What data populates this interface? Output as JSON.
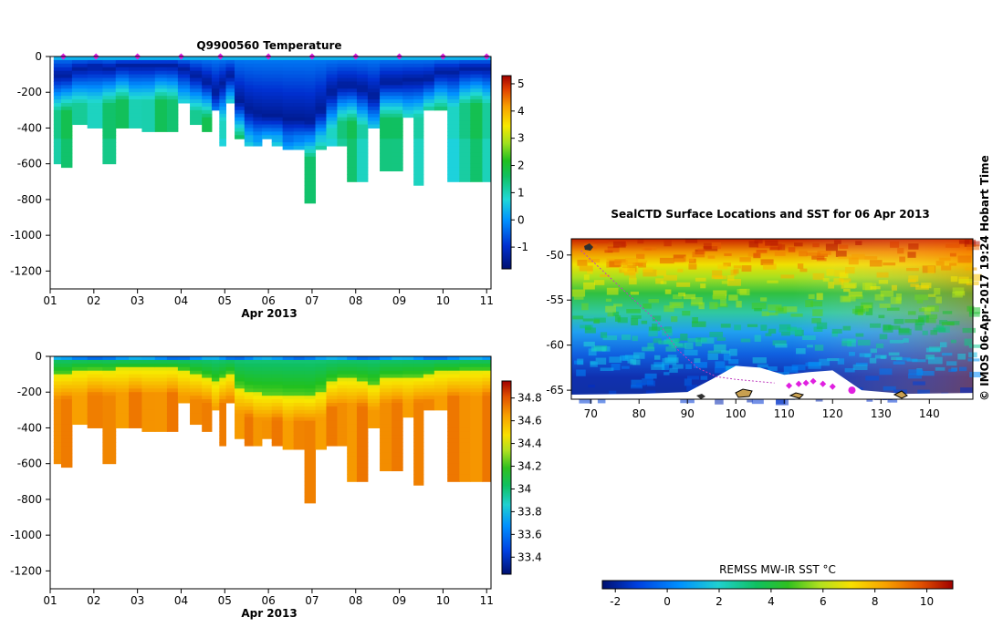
{
  "chart_data": [
    {
      "id": "temperature",
      "type": "heatmap",
      "title": "Q9900560  Temperature",
      "xlabel": "Apr 2013",
      "ylabel": "",
      "x_ticks": [
        "01",
        "02",
        "03",
        "04",
        "05",
        "06",
        "07",
        "08",
        "09",
        "10",
        "11"
      ],
      "xlim": [
        1,
        11.1
      ],
      "y_ticks": [
        0,
        -200,
        -400,
        -600,
        -800,
        -1000,
        -1200
      ],
      "ylim": [
        -1300,
        0
      ],
      "profile_times": [
        1.15,
        1.35,
        1.65,
        2.05,
        2.35,
        2.65,
        2.95,
        3.25,
        3.55,
        3.8,
        4.05,
        4.35,
        4.6,
        4.8,
        4.95,
        5.1,
        5.35,
        5.55,
        5.75,
        5.95,
        6.2,
        6.45,
        6.7,
        6.95,
        7.2,
        7.45,
        7.7,
        7.9,
        8.15,
        8.4,
        8.7,
        8.95,
        9.2,
        9.45,
        9.65,
        9.95,
        10.25,
        10.5,
        10.75,
        11.05
      ],
      "profile_max_depth": [
        590,
        610,
        380,
        400,
        600,
        400,
        400,
        410,
        410,
        410,
        260,
        370,
        420,
        300,
        500,
        260,
        460,
        500,
        500,
        460,
        500,
        520,
        520,
        810,
        520,
        500,
        500,
        700,
        700,
        400,
        640,
        640,
        340,
        720,
        300,
        300,
        700,
        700,
        700,
        700
      ],
      "profile_min_temp_depth": [
        100,
        100,
        60,
        50,
        60,
        40,
        40,
        40,
        40,
        40,
        60,
        100,
        140,
        200,
        150,
        100,
        250,
        300,
        320,
        330,
        330,
        350,
        350,
        360,
        300,
        200,
        160,
        160,
        180,
        220,
        140,
        140,
        130,
        130,
        120,
        80,
        80,
        60,
        60,
        60
      ],
      "surface_markers": [
        1.3,
        2.05,
        3.0,
        4.0,
        4.9,
        6.0,
        7.0,
        8.0,
        9.0,
        10.0,
        11.0
      ],
      "colorbar": {
        "min": -1.8,
        "max": 5.3,
        "ticks": [
          5,
          4,
          3,
          2,
          1,
          0,
          -1
        ]
      },
      "colors": {
        "marker": "#e020e0"
      }
    },
    {
      "id": "salinity",
      "type": "heatmap",
      "title": "",
      "xlabel": "Apr 2013",
      "ylabel": "",
      "x_ticks": [
        "01",
        "02",
        "03",
        "04",
        "05",
        "06",
        "07",
        "08",
        "09",
        "10",
        "11"
      ],
      "xlim": [
        1,
        11.1
      ],
      "y_ticks": [
        0,
        -200,
        -400,
        -600,
        -800,
        -1000,
        -1200
      ],
      "ylim": [
        -1300,
        0
      ],
      "colorbar": {
        "min": 33.25,
        "max": 34.95,
        "ticks": [
          34.8,
          34.6,
          34.4,
          34.2,
          34,
          33.8,
          33.6,
          33.4
        ]
      }
    },
    {
      "id": "sst_map",
      "type": "heatmap",
      "title": "SealCTD Surface Locations and SST for 06 Apr 2013",
      "xlabel": "",
      "ylabel": "",
      "x_ticks": [
        70,
        80,
        90,
        100,
        110,
        120,
        130,
        140
      ],
      "xlim": [
        66,
        149
      ],
      "y_ticks": [
        -50,
        -55,
        -60,
        -65
      ],
      "ylim": [
        -66,
        -48.2
      ],
      "track": [
        [
          68,
          -49.5
        ],
        [
          72,
          -51.5
        ],
        [
          78,
          -54.5
        ],
        [
          84,
          -57.5
        ],
        [
          88,
          -60.5
        ],
        [
          92,
          -62.5
        ],
        [
          96,
          -63.5
        ],
        [
          100,
          -63.8
        ],
        [
          104,
          -64
        ],
        [
          108,
          -64.2
        ]
      ],
      "surface_locations": [
        [
          111,
          -64.5
        ],
        [
          113,
          -64.3
        ],
        [
          114.5,
          -64.2
        ],
        [
          116,
          -64.0
        ],
        [
          118,
          -64.3
        ],
        [
          120,
          -64.6
        ]
      ],
      "latest_location": [
        124,
        -65
      ],
      "sst_front_latitudes": {
        "north_warm": -50,
        "mid": -56,
        "south_cold": -62
      },
      "ice_edge_profile": [
        [
          66,
          -65.5
        ],
        [
          80,
          -65.4
        ],
        [
          90,
          -65.2
        ],
        [
          95,
          -63.8
        ],
        [
          100,
          -62.3
        ],
        [
          105,
          -62.5
        ],
        [
          110,
          -63.3
        ],
        [
          115,
          -63.0
        ],
        [
          120,
          -62.8
        ],
        [
          126,
          -65.0
        ],
        [
          135,
          -65.4
        ],
        [
          149,
          -65.3
        ]
      ],
      "colorbar": {
        "label": "REMSS MW-IR SST °C",
        "min": -2.5,
        "max": 11,
        "ticks": [
          -2,
          0,
          2,
          4,
          6,
          8,
          10
        ]
      }
    }
  ],
  "credit": "©  IMOS 06-Apr-2017 19:24 Hobart Time"
}
